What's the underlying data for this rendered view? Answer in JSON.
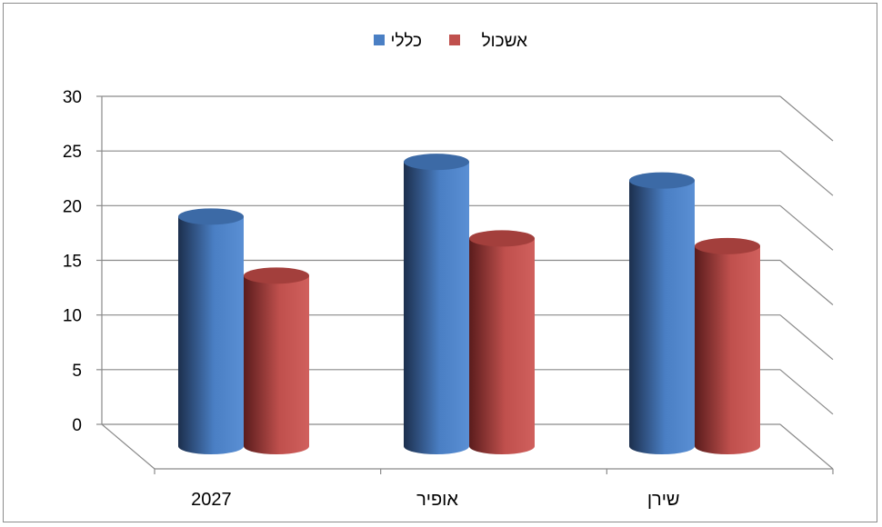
{
  "chart_data": {
    "type": "bar",
    "style": "3d-cylinder",
    "categories": [
      "2027",
      "אופיר",
      "שירן"
    ],
    "series": [
      {
        "name": "כללי",
        "values": [
          20,
          25,
          23.3
        ],
        "color": "#4a7fc4"
      },
      {
        "name": "אשכול",
        "values": [
          14.6,
          18,
          17.3
        ],
        "color": "#c0504d"
      }
    ],
    "ylim": [
      0,
      30
    ],
    "yticks": [
      0,
      5,
      10,
      15,
      20,
      25,
      30
    ],
    "grid": true,
    "legend_position": "top"
  }
}
